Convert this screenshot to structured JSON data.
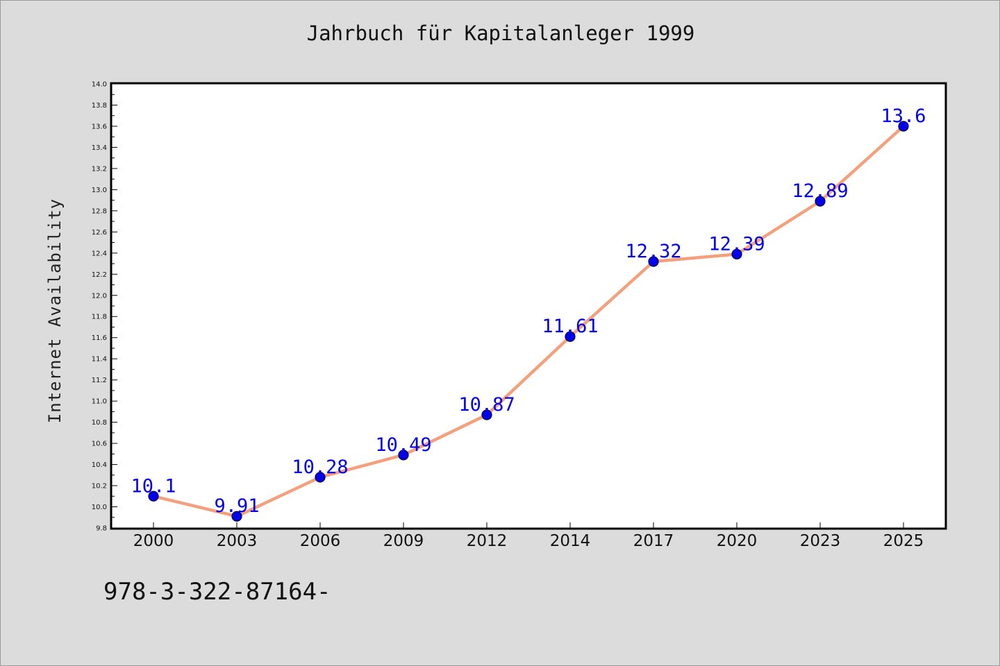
{
  "chart_data": {
    "type": "line",
    "title": "Jahrbuch für Kapitalanleger 1999",
    "xlabel": "",
    "ylabel": "Internet Availability",
    "categories": [
      "2000",
      "2003",
      "2006",
      "2009",
      "2012",
      "2014",
      "2017",
      "2020",
      "2023",
      "2025"
    ],
    "series": [
      {
        "values": [
          10.1,
          9.91,
          10.28,
          10.49,
          10.87,
          11.61,
          12.32,
          12.39,
          12.89,
          13.6
        ],
        "labels": [
          "10.1",
          "9.91",
          "10.28",
          "10.49",
          "10.87",
          "11.61",
          "12.32",
          "12.39",
          "12.89",
          "13.6"
        ]
      }
    ],
    "ylim": [
      9.8,
      14.0
    ],
    "yticks": [
      "9.8",
      "10.0",
      "10.2",
      "10.4",
      "10.6",
      "10.8",
      "11.0",
      "11.2",
      "11.4",
      "11.6",
      "11.8",
      "12.0",
      "12.2",
      "12.4",
      "12.6",
      "12.8",
      "13.0",
      "13.2",
      "13.4",
      "13.6",
      "13.8",
      "14.0"
    ],
    "grid": false,
    "legend": "none"
  },
  "footnote": "978-3-322-87164-",
  "colors": {
    "background": "#dcdcdc",
    "plot_background": "#ffffff",
    "line": "#f4a07c",
    "marker": "#0000ee",
    "data_label": "#0000ee"
  }
}
